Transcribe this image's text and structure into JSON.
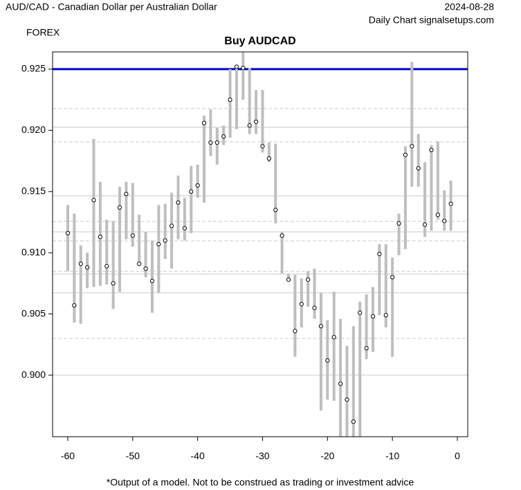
{
  "chart_data": {
    "type": "range",
    "subtitle_left": "AUD/CAD - Canadian Dollar per Australian Dollar",
    "market": "FOREX",
    "date": "2024-08-28",
    "source": "Daily Chart signalsetups.com",
    "title": "Buy AUDCAD",
    "footnote": "*Output of a model. Not to be construed as trading or investment advice",
    "x": [
      -60,
      -59,
      -58,
      -57,
      -56,
      -55,
      -54,
      -53,
      -52,
      -51,
      -50,
      -49,
      -48,
      -47,
      -46,
      -45,
      -44,
      -43,
      -42,
      -41,
      -40,
      -39,
      -38,
      -37,
      -36,
      -35,
      -34,
      -33,
      -32,
      -31,
      -30,
      -29,
      -28,
      -27,
      -26,
      -25,
      -24,
      -23,
      -22,
      -21,
      -20,
      -19,
      -18,
      -17,
      -16,
      -15,
      -14,
      -13,
      -12,
      -11,
      -10,
      -9,
      -8,
      -7,
      -6,
      -5,
      -4,
      -3,
      -2,
      -1
    ],
    "high": [
      0.9139,
      0.9132,
      0.9106,
      0.91,
      0.9193,
      0.9158,
      0.9127,
      0.9126,
      0.9154,
      0.9158,
      0.9157,
      0.9131,
      0.9117,
      0.911,
      0.9139,
      0.914,
      0.9149,
      0.9163,
      0.9145,
      0.9171,
      0.9172,
      0.9212,
      0.9217,
      0.9202,
      0.9204,
      0.925,
      0.9253,
      0.9264,
      0.9251,
      0.9233,
      0.9233,
      0.919,
      0.9189,
      0.9117,
      0.9083,
      0.9082,
      0.9079,
      0.9085,
      0.9087,
      0.9067,
      0.9045,
      0.9068,
      0.9046,
      0.9024,
      0.904,
      0.906,
      0.9066,
      0.9072,
      0.9107,
      0.9107,
      0.9096,
      0.9132,
      0.9187,
      0.9256,
      0.9197,
      0.9174,
      0.9188,
      0.9191,
      0.9151,
      0.9159
    ],
    "low": [
      0.9085,
      0.9043,
      0.9042,
      0.9071,
      0.9072,
      0.9073,
      0.9074,
      0.9054,
      0.9068,
      0.9111,
      0.9105,
      0.9089,
      0.908,
      0.9051,
      0.9067,
      0.9095,
      0.9087,
      0.9111,
      0.911,
      0.9116,
      0.9145,
      0.9141,
      0.9179,
      0.9172,
      0.9188,
      0.9194,
      0.9201,
      0.9225,
      0.9197,
      0.9197,
      0.9182,
      0.9174,
      0.9124,
      0.9083,
      0.9078,
      0.9015,
      0.9039,
      0.9056,
      0.9046,
      0.8971,
      0.898,
      0.8979,
      0.895,
      0.895,
      0.895,
      0.895,
      0.9013,
      0.9019,
      0.9049,
      0.9039,
      0.9015,
      0.9098,
      0.9103,
      0.9154,
      0.9154,
      0.9113,
      0.9118,
      0.9127,
      0.9118,
      0.9118
    ],
    "close": [
      0.9116,
      0.9057,
      0.9091,
      0.9088,
      0.9143,
      0.9113,
      0.9089,
      0.9075,
      0.9137,
      0.9148,
      0.9114,
      0.9091,
      0.9087,
      0.9077,
      0.9107,
      0.911,
      0.9122,
      0.9141,
      0.912,
      0.915,
      0.9155,
      0.9206,
      0.919,
      0.919,
      0.9195,
      0.9225,
      0.9252,
      0.9251,
      0.9204,
      0.9207,
      0.9187,
      0.9177,
      0.9135,
      0.9114,
      0.9078,
      0.9036,
      0.9058,
      0.9078,
      0.9055,
      0.904,
      0.9012,
      0.9031,
      0.8993,
      0.898,
      0.8962,
      0.9051,
      0.9022,
      0.9048,
      0.9099,
      0.9049,
      0.908,
      0.9124,
      0.918,
      0.9187,
      0.9169,
      0.9123,
      0.9184,
      0.9131,
      0.9126,
      0.914
    ],
    "range_color": "#bebebe",
    "levels": [
      {
        "value": 0.925,
        "style": "solid",
        "color": "#0000cc"
      },
      {
        "value": 0.92178,
        "style": "dashed",
        "color": "#c8c8c8"
      },
      {
        "value": 0.92025,
        "style": "solid",
        "color": "#c8c8c8"
      },
      {
        "value": 0.91906,
        "style": "dashed",
        "color": "#c8c8c8"
      },
      {
        "value": 0.91465,
        "style": "solid",
        "color": "#c8c8c8"
      },
      {
        "value": 0.91256,
        "style": "dashed",
        "color": "#c8c8c8"
      },
      {
        "value": 0.91171,
        "style": "solid",
        "color": "#c8c8c8"
      },
      {
        "value": 0.91097,
        "style": "dashed",
        "color": "#c8c8c8"
      },
      {
        "value": 0.90848,
        "style": "dashed",
        "color": "#c8c8c8"
      },
      {
        "value": 0.90826,
        "style": "solid",
        "color": "#c8c8c8"
      },
      {
        "value": 0.90673,
        "style": "solid",
        "color": "#c8c8c8"
      },
      {
        "value": 0.903,
        "style": "dashed",
        "color": "#c8c8c8"
      },
      {
        "value": 0.9,
        "style": "solid",
        "color": "#c8c8c8"
      }
    ],
    "xlim": [
      -62.34,
      1.6
    ],
    "ylim": [
      0.89497,
      0.92641
    ],
    "xticks": [
      -60,
      -50,
      -40,
      -30,
      -20,
      -10,
      0
    ],
    "yticks": [
      {
        "value": 0.9,
        "label": "0.900"
      },
      0.905,
      {
        "value": 0.91,
        "label": "0.910"
      },
      0.915,
      {
        "value": 0.92,
        "label": "0.920"
      },
      0.925
    ]
  }
}
